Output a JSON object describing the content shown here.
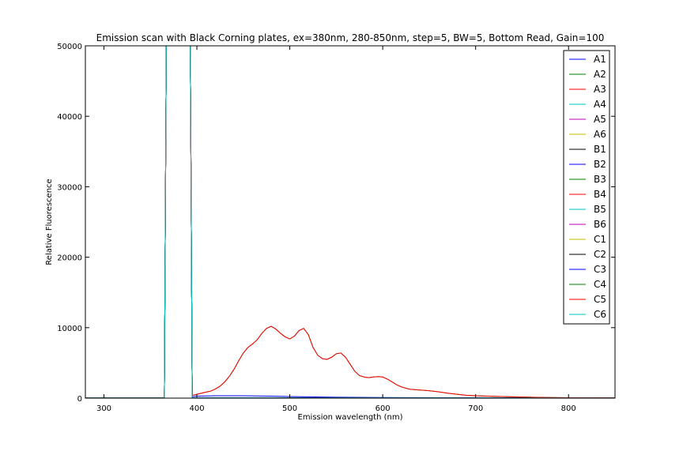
{
  "chart_data": {
    "type": "line",
    "title": "Emission scan with Black Corning plates, ex=380nm, 280-850nm, step=5, BW=5, Bottom Read, Gain=100",
    "xlabel": "Emission wavelength (nm)",
    "ylabel": "Relative Fluorescence",
    "xlim": [
      280,
      850
    ],
    "ylim": [
      0,
      50000
    ],
    "xticks": [
      300,
      400,
      500,
      600,
      700,
      800
    ],
    "yticks": [
      0,
      10000,
      20000,
      30000,
      40000,
      50000
    ],
    "grid": false,
    "legend_position": "top-right",
    "series": [
      {
        "name": "A1",
        "color": "#0000ff",
        "profile": "baseline"
      },
      {
        "name": "A2",
        "color": "#008000",
        "profile": "baseline"
      },
      {
        "name": "A3",
        "color": "#ff0000",
        "profile": "baseline"
      },
      {
        "name": "A4",
        "color": "#00bfbf",
        "profile": "baseline"
      },
      {
        "name": "A5",
        "color": "#bf00bf",
        "profile": "baseline"
      },
      {
        "name": "A6",
        "color": "#bfbf00",
        "profile": "baseline"
      },
      {
        "name": "B1",
        "color": "#000000",
        "profile": "baseline"
      },
      {
        "name": "B2",
        "color": "#0000ff",
        "profile": "low"
      },
      {
        "name": "B3",
        "color": "#008000",
        "profile": "baseline"
      },
      {
        "name": "B4",
        "color": "#ff0000",
        "profile": "baseline"
      },
      {
        "name": "B5",
        "color": "#00bfbf",
        "profile": "baseline"
      },
      {
        "name": "B6",
        "color": "#bf00bf",
        "profile": "baseline"
      },
      {
        "name": "C1",
        "color": "#bfbf00",
        "profile": "baseline"
      },
      {
        "name": "C2",
        "color": "#000000",
        "profile": "baseline"
      },
      {
        "name": "C3",
        "color": "#0000ff",
        "profile": "baseline"
      },
      {
        "name": "C4",
        "color": "#008000",
        "profile": "peak"
      },
      {
        "name": "C5",
        "color": "#ff0000",
        "profile": "peak"
      },
      {
        "name": "C6",
        "color": "#00bfbf",
        "profile": "baseline"
      }
    ],
    "profiles": {
      "baseline": {
        "x": [
          280,
          365,
          370,
          375,
          380,
          385,
          390,
          395,
          400,
          450,
          500,
          550,
          600,
          700,
          850
        ],
        "y": [
          30,
          30,
          120000,
          120000,
          120000,
          120000,
          120000,
          50,
          45,
          40,
          35,
          30,
          28,
          25,
          20
        ]
      },
      "low": {
        "x": [
          280,
          365,
          370,
          375,
          380,
          385,
          390,
          395,
          400,
          420,
          450,
          480,
          500,
          550,
          600,
          700,
          850
        ],
        "y": [
          30,
          30,
          120000,
          120000,
          120000,
          120000,
          120000,
          200,
          280,
          340,
          330,
          280,
          220,
          120,
          80,
          40,
          20
        ]
      },
      "peak": {
        "x": [
          280,
          365,
          370,
          375,
          380,
          385,
          390,
          395,
          400,
          405,
          410,
          415,
          420,
          425,
          430,
          435,
          440,
          445,
          450,
          455,
          460,
          465,
          470,
          475,
          480,
          485,
          490,
          495,
          500,
          505,
          510,
          515,
          520,
          525,
          530,
          535,
          540,
          545,
          550,
          555,
          560,
          565,
          570,
          575,
          580,
          585,
          590,
          595,
          600,
          605,
          610,
          615,
          620,
          625,
          630,
          640,
          650,
          660,
          670,
          680,
          690,
          700,
          720,
          740,
          760,
          780,
          800,
          850
        ],
        "y": [
          30,
          30,
          120000,
          120000,
          120000,
          120000,
          120000,
          400,
          550,
          700,
          850,
          1000,
          1300,
          1700,
          2300,
          3100,
          4100,
          5300,
          6400,
          7200,
          7700,
          8300,
          9200,
          9900,
          10200,
          9800,
          9200,
          8700,
          8400,
          8800,
          9600,
          9900,
          9000,
          7200,
          6100,
          5600,
          5500,
          5800,
          6300,
          6400,
          5800,
          4800,
          3800,
          3200,
          3000,
          2900,
          3000,
          3050,
          3000,
          2700,
          2300,
          1900,
          1600,
          1400,
          1250,
          1150,
          1050,
          900,
          700,
          550,
          400,
          330,
          250,
          180,
          120,
          80,
          50,
          30
        ]
      }
    }
  }
}
